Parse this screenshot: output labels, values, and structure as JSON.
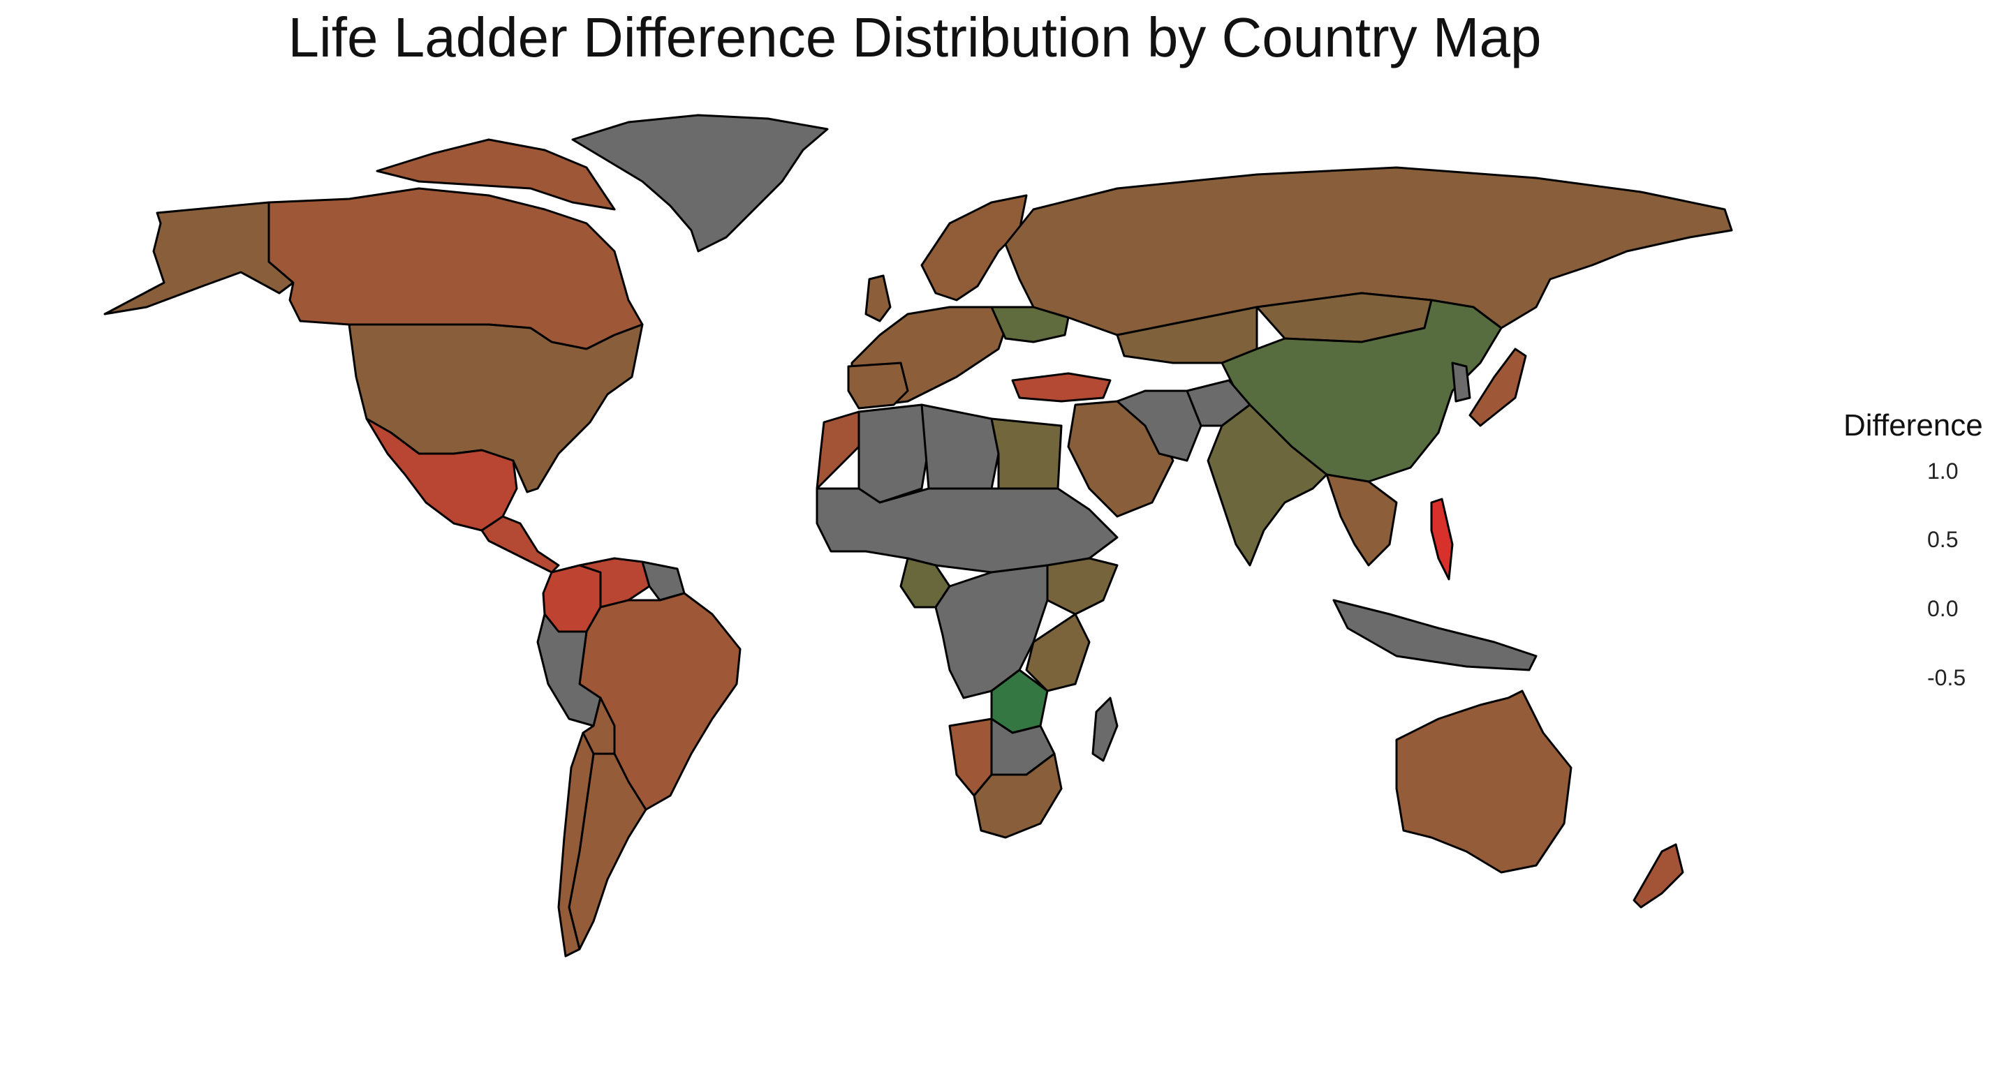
{
  "title": "Life Ladder Difference Distribution by Country Map",
  "legend": {
    "title": "Difference",
    "ticks": [
      {
        "value": 1.0,
        "label": "1.0"
      },
      {
        "value": 0.5,
        "label": "0.5"
      },
      {
        "value": 0.0,
        "label": "0.0"
      },
      {
        "value": -0.5,
        "label": "-0.5"
      }
    ],
    "range": [
      -0.85,
      1.1
    ],
    "low_color": "#e32a2a",
    "high_color": "#2b7a44",
    "na_color": "#6b6b6b"
  },
  "chart_data": {
    "type": "choropleth",
    "title": "Life Ladder Difference Distribution by Country Map",
    "variable": "Difference",
    "color_scale": {
      "low": "#e32a2a",
      "high": "#2b7a44",
      "missing": "#6b6b6b"
    },
    "countries": [
      {
        "country": "Canada",
        "difference": -0.2
      },
      {
        "country": "United States",
        "difference": 0.05
      },
      {
        "country": "Alaska (US)",
        "difference": 0.05
      },
      {
        "country": "Greenland",
        "difference": null
      },
      {
        "country": "Mexico",
        "difference": -0.45
      },
      {
        "country": "Central America",
        "difference": -0.4
      },
      {
        "country": "Colombia",
        "difference": -0.5
      },
      {
        "country": "Venezuela",
        "difference": -0.45
      },
      {
        "country": "Brazil",
        "difference": -0.2
      },
      {
        "country": "Guianas",
        "difference": null
      },
      {
        "country": "Peru",
        "difference": null
      },
      {
        "country": "Bolivia",
        "difference": -0.1
      },
      {
        "country": "Argentina",
        "difference": -0.1
      },
      {
        "country": "Chile",
        "difference": -0.1
      },
      {
        "country": "Western Europe",
        "difference": 0.0
      },
      {
        "country": "Scandinavia",
        "difference": -0.05
      },
      {
        "country": "Ukraine",
        "difference": 0.5
      },
      {
        "country": "Turkey",
        "difference": -0.4
      },
      {
        "country": "Russia",
        "difference": 0.05
      },
      {
        "country": "Kazakhstan",
        "difference": 0.15
      },
      {
        "country": "Mongolia",
        "difference": 0.15
      },
      {
        "country": "China",
        "difference": 0.6
      },
      {
        "country": "India",
        "difference": 0.35
      },
      {
        "country": "Iran",
        "difference": null
      },
      {
        "country": "Afghanistan",
        "difference": null
      },
      {
        "country": "Saudi Arabia",
        "difference": 0.05
      },
      {
        "country": "Egypt",
        "difference": 0.3
      },
      {
        "country": "Libya",
        "difference": null
      },
      {
        "country": "Algeria",
        "difference": null
      },
      {
        "country": "Morocco",
        "difference": -0.25
      },
      {
        "country": "Sahel",
        "difference": null
      },
      {
        "country": "Nigeria",
        "difference": 0.4
      },
      {
        "country": "Ethiopia",
        "difference": 0.25
      },
      {
        "country": "Central Africa",
        "difference": null
      },
      {
        "country": "Zambia",
        "difference": 1.0
      },
      {
        "country": "Tanzania",
        "difference": 0.2
      },
      {
        "country": "Namibia",
        "difference": -0.2
      },
      {
        "country": "South Africa",
        "difference": 0.05
      },
      {
        "country": "Madagascar",
        "difference": null
      },
      {
        "country": "Japan",
        "difference": -0.2
      },
      {
        "country": "Korea",
        "difference": null
      },
      {
        "country": "Southeast Asia",
        "difference": 0.0
      },
      {
        "country": "Philippines",
        "difference": -0.75
      },
      {
        "country": "Indonesia",
        "difference": null
      },
      {
        "country": "Australia",
        "difference": -0.1
      },
      {
        "country": "New Zealand",
        "difference": -0.25
      }
    ]
  }
}
